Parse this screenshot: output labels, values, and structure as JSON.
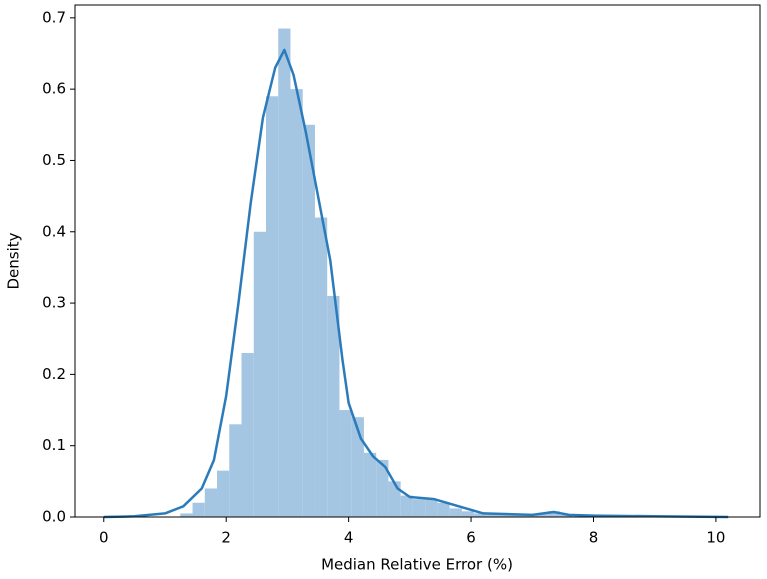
{
  "chart_data": {
    "type": "histogram",
    "xlabel": "Median Relative Error (%)",
    "ylabel": "Density",
    "bins": [
      1.25,
      1.45,
      1.65,
      1.85,
      2.05,
      2.25,
      2.45,
      2.65,
      2.85,
      3.05,
      3.25,
      3.45,
      3.65,
      3.85,
      4.05,
      4.25,
      4.45,
      4.65,
      4.85,
      5.05,
      5.25,
      5.45,
      5.65,
      5.85,
      6.05,
      6.25,
      6.45,
      6.65,
      6.85,
      7.05,
      7.25,
      7.45,
      7.65
    ],
    "counts": [
      0.005,
      0.02,
      0.04,
      0.065,
      0.13,
      0.23,
      0.4,
      0.59,
      0.685,
      0.6,
      0.55,
      0.42,
      0.31,
      0.15,
      0.14,
      0.09,
      0.08,
      0.05,
      0.03,
      0.025,
      0.025,
      0.02,
      0.012,
      0.008,
      0.005,
      0.004,
      0.003,
      0.003,
      0.002,
      0.004,
      0.008,
      0.003
    ],
    "color": "#a5c6e2",
    "kde": {
      "color": "#2b7bba",
      "x": [
        0,
        0.5,
        1,
        1.3,
        1.6,
        1.8,
        2.0,
        2.2,
        2.4,
        2.6,
        2.8,
        2.95,
        3.1,
        3.3,
        3.5,
        3.7,
        3.9,
        4.0,
        4.2,
        4.4,
        4.6,
        4.8,
        5.0,
        5.4,
        5.8,
        6.2,
        7.0,
        7.35,
        7.6,
        8,
        9,
        10.2
      ],
      "y": [
        0,
        0.001,
        0.005,
        0.015,
        0.04,
        0.08,
        0.17,
        0.3,
        0.44,
        0.56,
        0.63,
        0.655,
        0.62,
        0.54,
        0.45,
        0.36,
        0.22,
        0.16,
        0.11,
        0.085,
        0.07,
        0.04,
        0.028,
        0.025,
        0.015,
        0.005,
        0.003,
        0.007,
        0.003,
        0.002,
        0.001,
        0
      ]
    },
    "xlim": [
      -0.47,
      10.72
    ],
    "ylim": [
      0,
      0.718
    ],
    "xticks": [
      0,
      2,
      4,
      6,
      8,
      10
    ],
    "yticks": [
      {
        "value": 0,
        "label": "0.0"
      },
      0.1,
      0.2,
      0.3,
      0.4,
      0.5,
      0.6,
      0.7
    ]
  }
}
